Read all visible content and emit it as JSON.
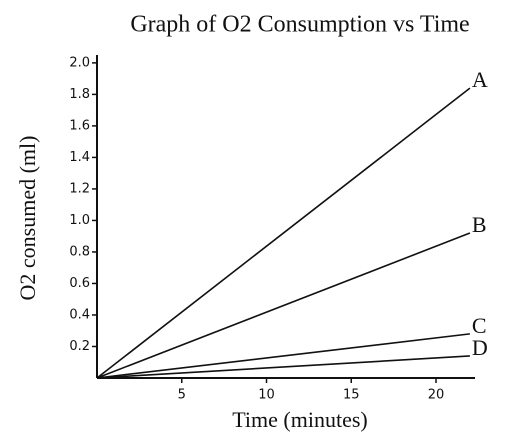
{
  "chart_data": {
    "type": "line",
    "title": "Graph of O2 Consumption vs Time",
    "x_label": "Time (minutes)",
    "y_label": "O2 consumed (ml)",
    "x": [
      0,
      22
    ],
    "series": [
      {
        "name": "A",
        "color": "#111111",
        "values": [
          0,
          1.84
        ]
      },
      {
        "name": "B",
        "color": "#111111",
        "values": [
          0,
          0.92
        ]
      },
      {
        "name": "C",
        "color": "#111111",
        "values": [
          0,
          0.28
        ]
      },
      {
        "name": "D",
        "color": "#111111",
        "values": [
          0,
          0.14
        ]
      }
    ],
    "xlim": [
      0,
      22.3
    ],
    "ylim": [
      0,
      2.05
    ],
    "xticks": [
      5,
      10,
      15,
      20
    ],
    "yticks": [
      0.2,
      0.4,
      0.6,
      0.8,
      {
        "value": 1,
        "label": "1.0"
      },
      1.2,
      1.4,
      1.6,
      1.8,
      {
        "value": 2,
        "label": "2.0"
      }
    ],
    "grid": false
  }
}
